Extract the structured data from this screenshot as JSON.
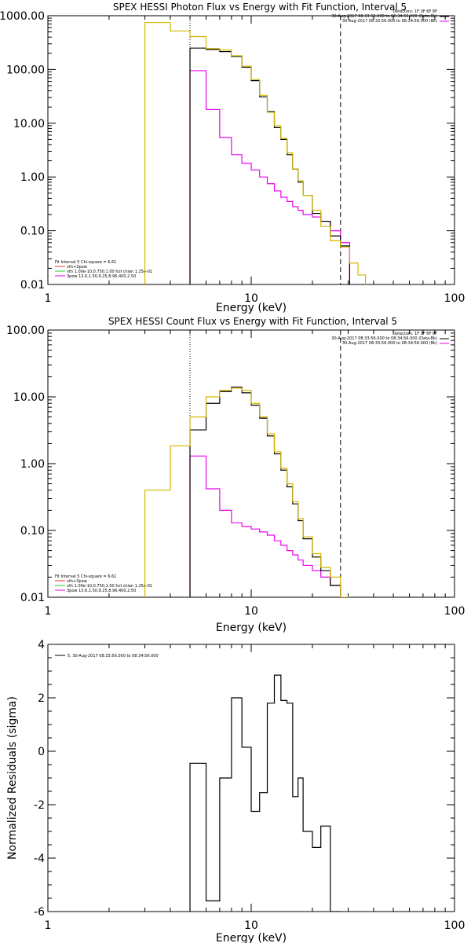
{
  "colors": {
    "data": "#000000",
    "total": "#d4b800",
    "vth": "#22c833",
    "bpow": "#ee00ee",
    "total_legend": "#ff3030"
  },
  "chart_data": [
    {
      "type": "line",
      "title": "SPEX HESSI Photon Flux vs Energy with Fit Function, Interval 5",
      "xlabel": "Energy (keV)",
      "ylabel": "",
      "xscale": "log",
      "yscale": "log",
      "xlim": [
        1,
        100
      ],
      "ylim": [
        0.01,
        1000
      ],
      "xticks": [
        {
          "v": 1,
          "label": "1"
        },
        {
          "v": 10,
          "label": "10"
        },
        {
          "v": 100,
          "label": "100"
        }
      ],
      "yticks": [
        {
          "v": 0.01,
          "label": "0.01"
        },
        {
          "v": 0.1,
          "label": "0.10"
        },
        {
          "v": 1,
          "label": "1.00"
        },
        {
          "v": 10,
          "label": "10.00"
        },
        {
          "v": 100,
          "label": "100.00"
        },
        {
          "v": 1000,
          "label": "1000.00"
        }
      ],
      "vlines": [
        {
          "x": 5.0,
          "style": "dotted"
        },
        {
          "x": 27.5,
          "style": "dashed"
        }
      ],
      "header_lines": [
        "Detectors: 1F 3F 6F 8F",
        "30-Aug-2017 08:33:56.000 to 08:34:56.000 (Data-Bk)",
        "30-Aug-2017 08:33:56.000 to 08:34:56.000 (Bk)"
      ],
      "legend": [
        {
          "label": "Fit Interval 5   Chi-square = 6.61",
          "color": "#000000"
        },
        {
          "label": "vth+3pow",
          "color": "#ff3030"
        },
        {
          "label": "vth 1.00e-10,0.750,1.00  full chian 1.25e-01",
          "color": "#22c833"
        },
        {
          "label": "3pow 13.6,1.50,9.25,8.96,400,2.50",
          "color": "#ee00ee"
        }
      ],
      "edges": [
        3.0,
        4.0,
        5.0,
        6.0,
        7.0,
        8.0,
        9.0,
        10.0,
        11.0,
        12.0,
        13.0,
        14.0,
        15.0,
        16.0,
        17.0,
        18.0,
        20.0,
        22.0,
        24.5,
        27.5,
        30.5,
        33.5,
        36.5
      ],
      "series": [
        {
          "key": "total",
          "values": [
            750,
            520,
            410,
            245,
            230,
            180,
            115,
            65,
            33,
            16,
            9.0,
            5.2,
            2.8,
            1.4,
            0.85,
            0.45,
            0.24,
            0.12,
            0.065,
            0.05,
            0.025,
            0.015
          ]
        },
        {
          "key": "data",
          "values": [
            null,
            null,
            250,
            235,
            215,
            175,
            110,
            62,
            31,
            16.5,
            8.3,
            5.0,
            2.6,
            1.4,
            0.8,
            0.45,
            0.21,
            0.15,
            0.08,
            0.052,
            null,
            null
          ]
        },
        {
          "key": "bpow",
          "values": [
            null,
            null,
            95,
            18,
            5.4,
            2.6,
            1.8,
            1.35,
            1.0,
            0.75,
            0.55,
            0.42,
            0.35,
            0.28,
            0.24,
            0.2,
            0.18,
            0.15,
            0.1,
            0.06,
            null,
            null
          ]
        }
      ]
    },
    {
      "type": "line",
      "title": "SPEX HESSI Count Flux vs Energy with Fit Function, Interval 5",
      "xlabel": "Energy (keV)",
      "ylabel": "",
      "xscale": "log",
      "yscale": "log",
      "xlim": [
        1,
        100
      ],
      "ylim": [
        0.01,
        100
      ],
      "xticks": [
        {
          "v": 1,
          "label": "1"
        },
        {
          "v": 10,
          "label": "10"
        },
        {
          "v": 100,
          "label": "100"
        }
      ],
      "yticks": [
        {
          "v": 0.01,
          "label": "0.01"
        },
        {
          "v": 0.1,
          "label": "0.10"
        },
        {
          "v": 1,
          "label": "1.00"
        },
        {
          "v": 10,
          "label": "10.00"
        },
        {
          "v": 100,
          "label": "100.00"
        }
      ],
      "vlines": [
        {
          "x": 5.0,
          "style": "dotted"
        },
        {
          "x": 27.5,
          "style": "dashed"
        }
      ],
      "header_lines": [
        "Detectors: 1F 3F 6F 8F",
        "30-Aug-2017 08:33:56.000 to 08:34:56.000 (Data-Bk)",
        "30-Aug-2017 08:33:56.000 to 08:34:56.000 (Bk)"
      ],
      "legend": [
        {
          "label": "Fit Interval 5   Chi-square = 6.61",
          "color": "#000000"
        },
        {
          "label": "vth+3pow",
          "color": "#ff3030"
        },
        {
          "label": "vth 1.00e-10,0.750,1.00  full chian 1.25e-01",
          "color": "#22c833"
        },
        {
          "label": "3pow 13.6,1.50,9.25,8.96,400,2.50",
          "color": "#ee00ee"
        }
      ],
      "edges": [
        3.0,
        4.0,
        5.0,
        6.0,
        7.0,
        8.0,
        9.0,
        10.0,
        11.0,
        12.0,
        13.0,
        14.0,
        15.0,
        16.0,
        17.0,
        18.0,
        20.0,
        22.0,
        24.5,
        27.5,
        30.5
      ],
      "series": [
        {
          "key": "total",
          "values": [
            0.4,
            1.85,
            5.0,
            10.0,
            12.5,
            13.5,
            12.5,
            8.0,
            5.0,
            2.8,
            1.5,
            0.85,
            0.5,
            0.27,
            0.15,
            0.08,
            0.045,
            0.028,
            0.02,
            0.01
          ]
        },
        {
          "key": "data",
          "values": [
            null,
            null,
            3.2,
            8.0,
            12.0,
            14.0,
            11.5,
            7.5,
            4.8,
            2.6,
            1.4,
            0.8,
            0.45,
            0.25,
            0.14,
            0.075,
            0.04,
            0.025,
            0.015,
            null
          ]
        },
        {
          "key": "bpow",
          "values": [
            null,
            null,
            1.3,
            0.42,
            0.2,
            0.13,
            0.115,
            0.105,
            0.095,
            0.085,
            0.07,
            0.06,
            0.05,
            0.043,
            0.036,
            0.03,
            0.025,
            0.02,
            0.015,
            null
          ]
        }
      ]
    },
    {
      "type": "line",
      "title": "",
      "xlabel": "Energy (keV)",
      "ylabel": "Normalized Residuals (sigma)",
      "xscale": "log",
      "yscale": "linear",
      "xlim": [
        1,
        100
      ],
      "ylim": [
        -6,
        4
      ],
      "xticks": [
        {
          "v": 1,
          "label": "1"
        },
        {
          "v": 10,
          "label": "10"
        },
        {
          "v": 100,
          "label": "100"
        }
      ],
      "yticks": [
        {
          "v": -6,
          "label": "-6"
        },
        {
          "v": -4,
          "label": "-4"
        },
        {
          "v": -2,
          "label": "-2"
        },
        {
          "v": 0,
          "label": "0"
        },
        {
          "v": 2,
          "label": "2"
        },
        {
          "v": 4,
          "label": "4"
        }
      ],
      "legend": [
        {
          "label": "5. 30-Aug-2017 08:33:56.000 to 08:34:56.000",
          "color": "#000000"
        }
      ],
      "edges": [
        5.0,
        6.0,
        7.0,
        8.0,
        9.0,
        10.0,
        11.0,
        12.0,
        13.0,
        14.0,
        15.0,
        16.0,
        17.0,
        18.0,
        20.0,
        22.0,
        24.5,
        27.5
      ],
      "series": [
        {
          "key": "data",
          "values": [
            -0.45,
            -5.6,
            -1.0,
            2.0,
            0.15,
            -2.25,
            -1.55,
            1.8,
            2.85,
            1.9,
            1.8,
            -1.7,
            -1.0,
            -3.0,
            -3.6,
            -2.8,
            -6.0
          ]
        }
      ]
    }
  ]
}
